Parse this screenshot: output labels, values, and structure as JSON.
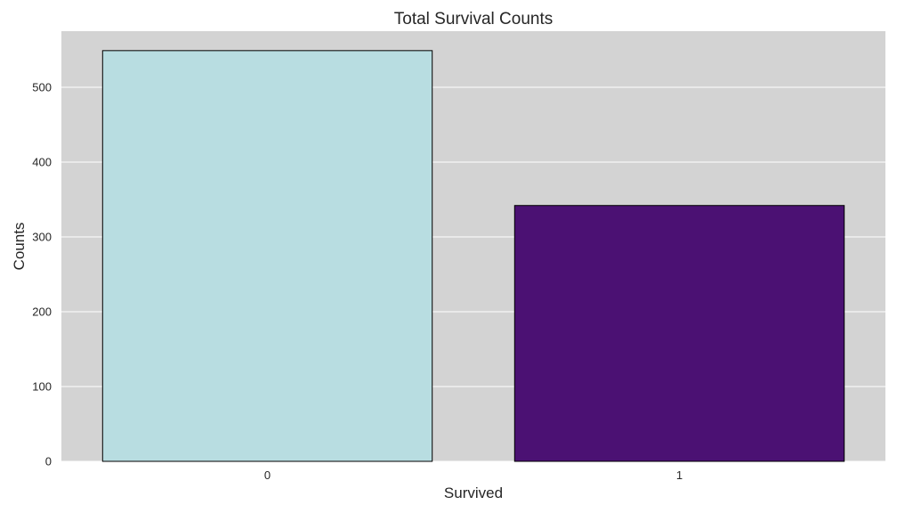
{
  "chart_data": {
    "type": "bar",
    "title": "Total Survival Counts",
    "xlabel": "Survived",
    "ylabel": "Counts",
    "categories": [
      "0",
      "1"
    ],
    "values": [
      549,
      342
    ],
    "colors": [
      "#b8dde1",
      "#4b1173"
    ],
    "bar_edge_color": "#000000",
    "plot_background": "#d3d3d3",
    "grid": true,
    "grid_color": "#ffffff",
    "ylim": [
      0,
      575
    ],
    "yticks": [
      0,
      100,
      200,
      300,
      400,
      500
    ]
  }
}
